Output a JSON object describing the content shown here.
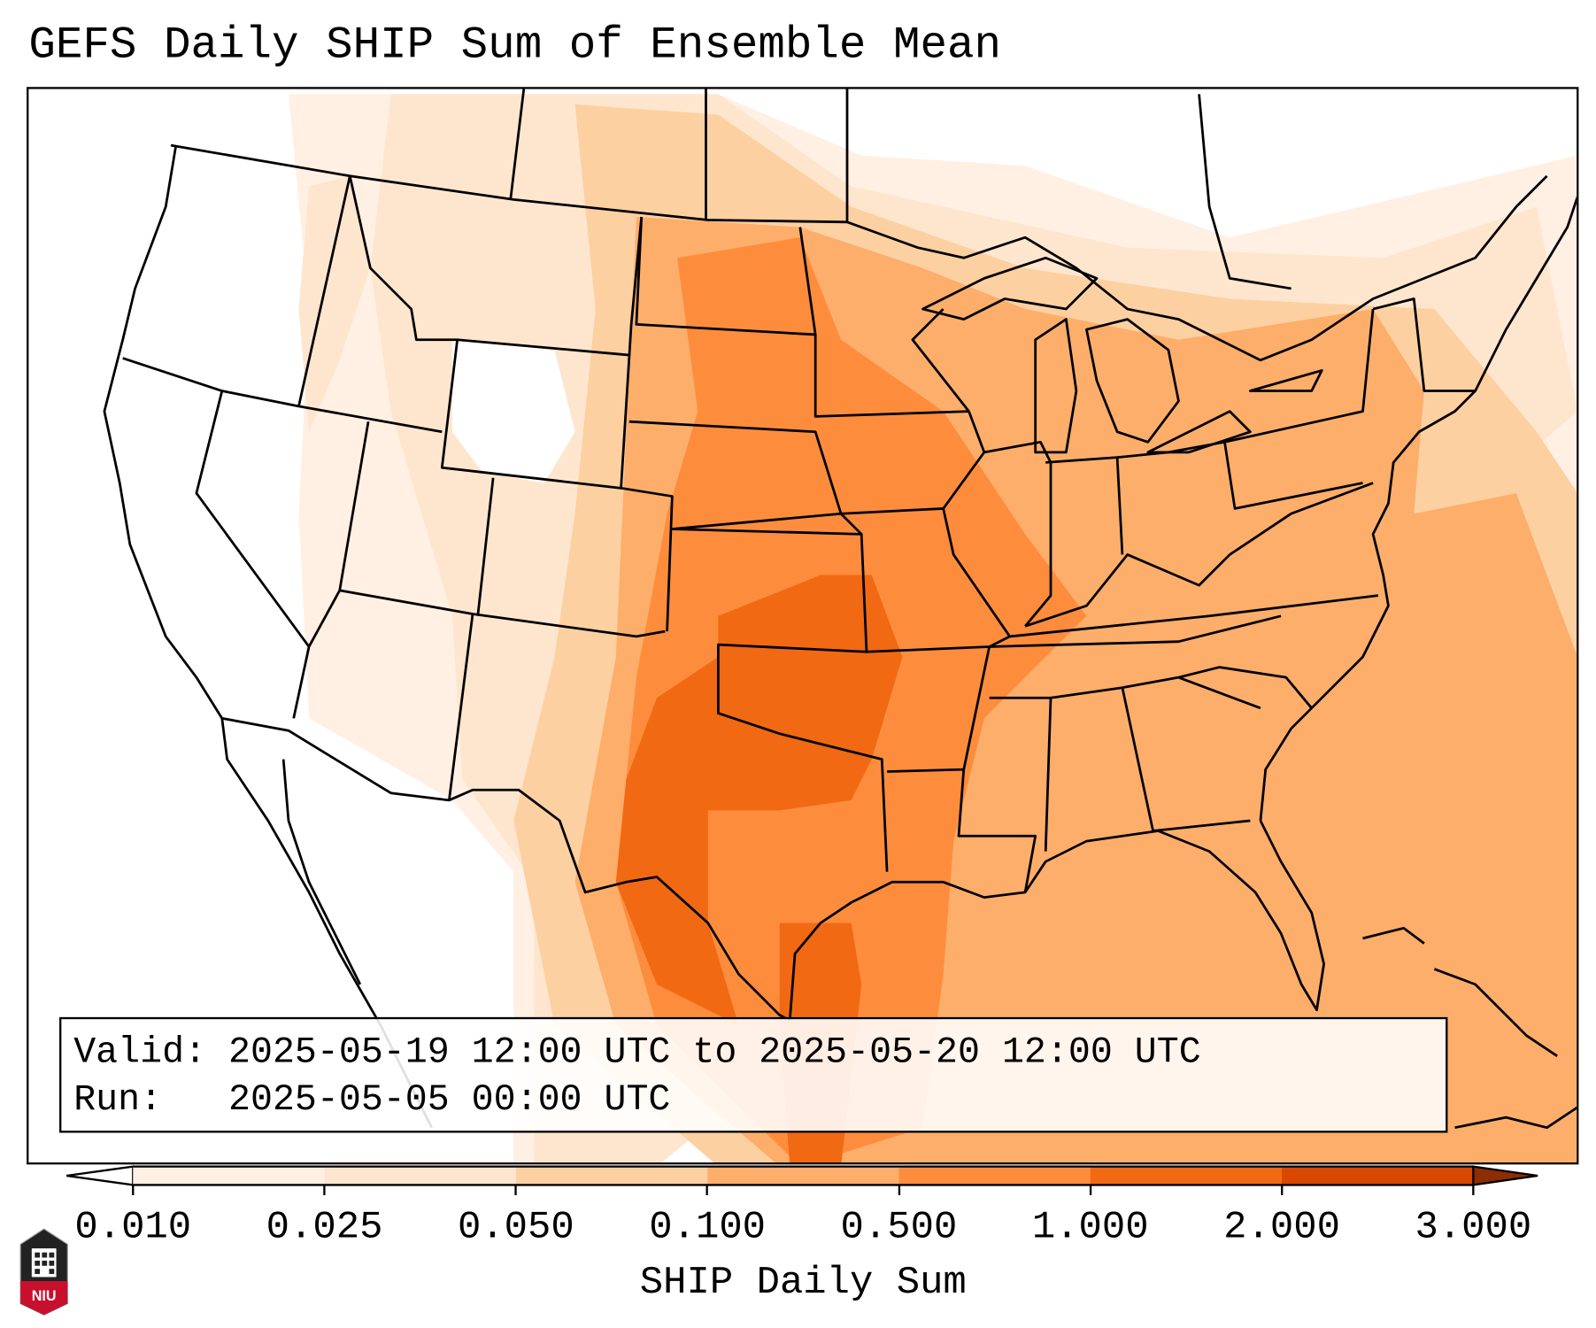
{
  "title": "GEFS Daily SHIP Sum of Ensemble Mean",
  "info": {
    "valid_label": "Valid:",
    "valid_value": "2025-05-19 12:00 UTC to 2025-05-20 12:00 UTC",
    "run_label": "Run:",
    "run_value": "2025-05-05 00:00 UTC"
  },
  "colorbar": {
    "label": "SHIP Daily Sum",
    "ticks": [
      "0.010",
      "0.025",
      "0.050",
      "0.100",
      "0.500",
      "1.000",
      "2.000",
      "3.000"
    ],
    "colors": [
      "#fff0e3",
      "#fee6ce",
      "#fdd0a2",
      "#fdae6b",
      "#fd8d3c",
      "#f16913",
      "#d94801"
    ],
    "under_color": "#ffffff",
    "over_color": "#8c2d04"
  },
  "logo": {
    "text": "NIU"
  }
}
